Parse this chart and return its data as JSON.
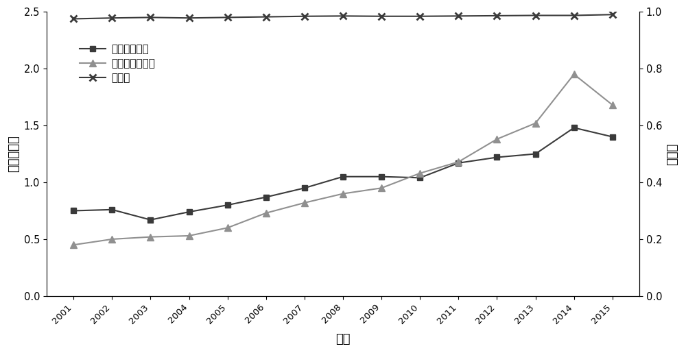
{
  "years": [
    2001,
    2002,
    2003,
    2004,
    2005,
    2006,
    2007,
    2008,
    2009,
    2010,
    2011,
    2012,
    2013,
    2014,
    2015
  ],
  "water_footprint": [
    0.75,
    0.76,
    0.67,
    0.74,
    0.8,
    0.87,
    0.95,
    1.05,
    1.05,
    1.04,
    1.17,
    1.22,
    1.25,
    1.48,
    1.4
  ],
  "eco_footprint": [
    0.45,
    0.5,
    0.52,
    0.53,
    0.6,
    0.73,
    0.82,
    0.9,
    0.95,
    1.08,
    1.18,
    1.38,
    1.52,
    1.95,
    1.68
  ],
  "coupling": [
    0.975,
    0.978,
    0.98,
    0.978,
    0.98,
    0.982,
    0.984,
    0.985,
    0.984,
    0.984,
    0.985,
    0.986,
    0.987,
    0.987,
    0.99
  ],
  "water_color": "#3a3a3a",
  "eco_color": "#909090",
  "coupling_color": "#3a3a3a",
  "ylabel_left": "归一化指数",
  "ylabel_right": "耦合度",
  "xlabel": "年份",
  "legend_water": "水足迹归一化",
  "legend_eco": "生态足迹归一化",
  "legend_coupling": "耦合度",
  "ylim_left": [
    0,
    2.5
  ],
  "ylim_right": [
    0,
    1.0
  ],
  "yticks_left": [
    0,
    0.5,
    1.0,
    1.5,
    2.0,
    2.5
  ],
  "yticks_right": [
    0,
    0.2,
    0.4,
    0.6,
    0.8,
    1.0
  ],
  "figsize": [
    10.0,
    5.15
  ],
  "dpi": 100
}
